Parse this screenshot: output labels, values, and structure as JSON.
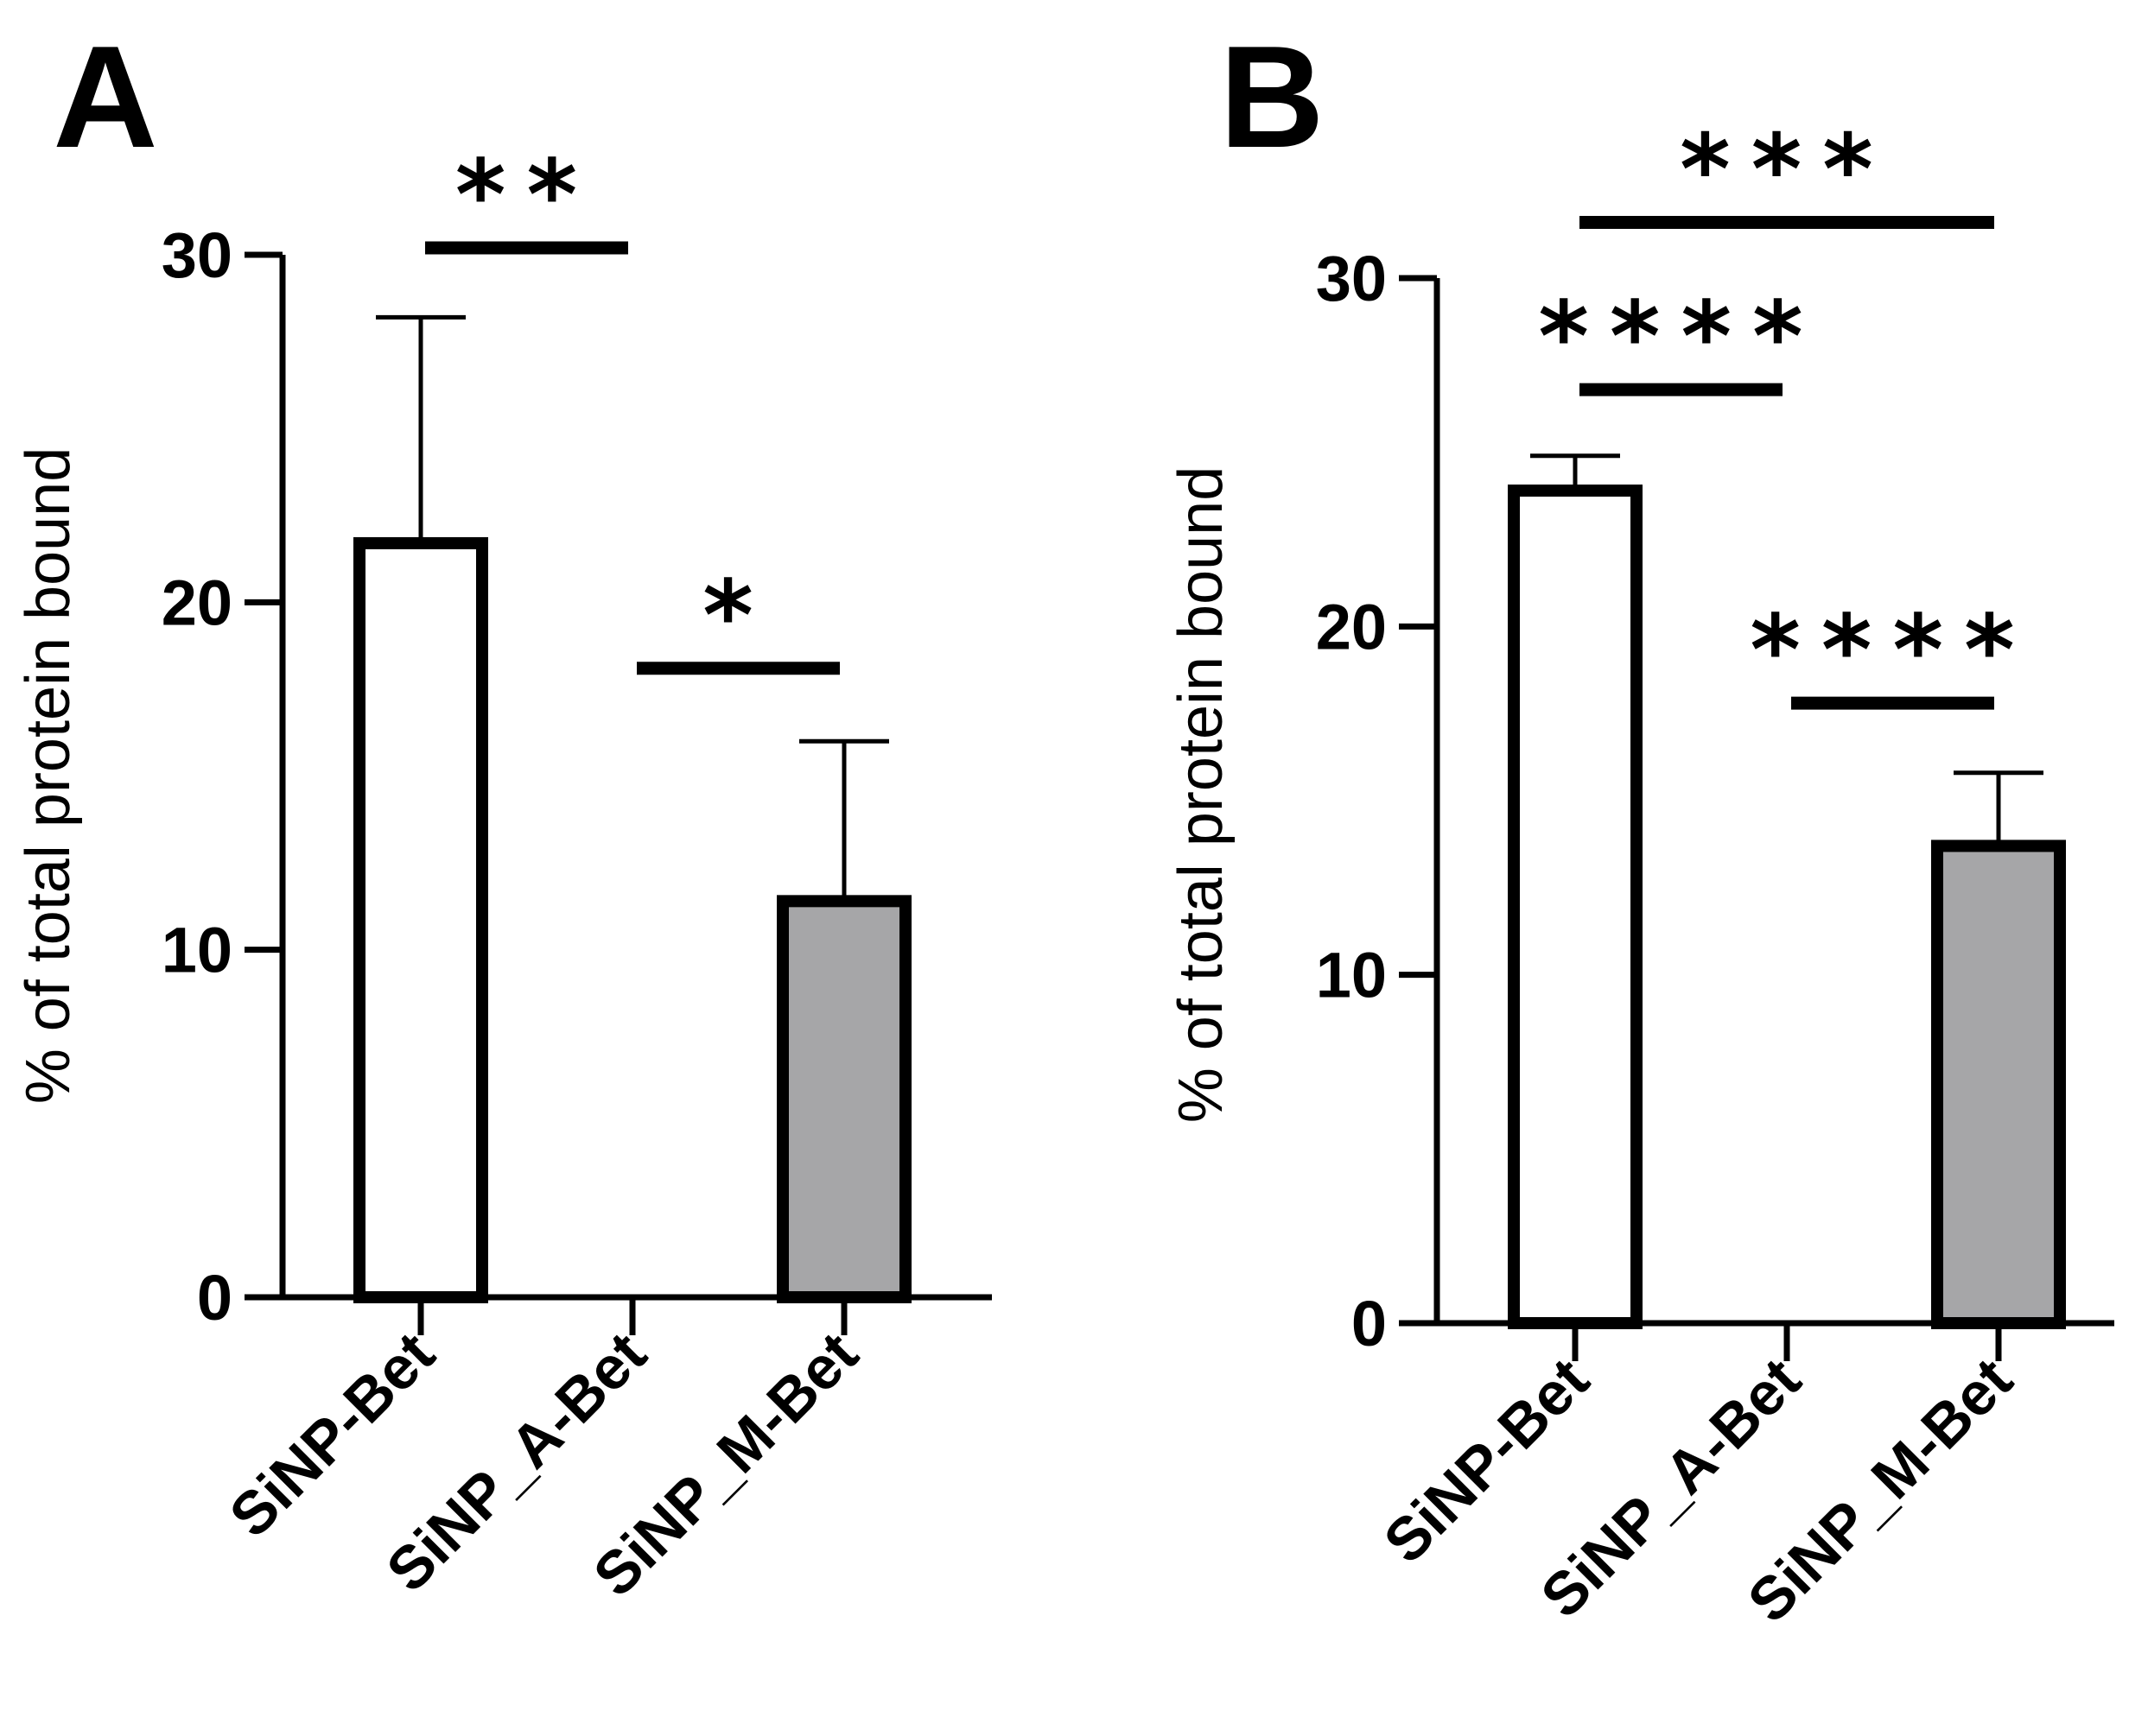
{
  "chart_data": [
    {
      "type": "bar",
      "panel_label": "A",
      "categories": [
        "SiNP-Bet",
        "SiNP_A-Bet",
        "SiNP_M-Bet"
      ],
      "values": [
        21.7,
        0,
        11.4
      ],
      "errors": [
        6.5,
        0,
        4.6
      ],
      "bar_colors": [
        "#ffffff",
        "#ffffff",
        "#a6a6a8"
      ],
      "ylabel": "% of total protein bound",
      "ylim": [
        0,
        30
      ],
      "yticks": [
        0,
        10,
        20,
        30
      ],
      "grid": false,
      "significance": [
        {
          "from": 0,
          "to": 1,
          "level": 30.2,
          "label": "**"
        },
        {
          "from": 1,
          "to": 2,
          "level": 18.1,
          "label": "*"
        }
      ]
    },
    {
      "type": "bar",
      "panel_label": "B",
      "categories": [
        "SiNP-Bet",
        "SiNP_A-Bet",
        "SiNP_M-Bet"
      ],
      "values": [
        23.9,
        0,
        13.7
      ],
      "errors": [
        1.0,
        0,
        2.1
      ],
      "bar_colors": [
        "#ffffff",
        "#ffffff",
        "#a6a6a8"
      ],
      "ylabel": "% of total protein bound",
      "ylim": [
        0,
        30
      ],
      "yticks": [
        0,
        10,
        20,
        30
      ],
      "grid": false,
      "significance": [
        {
          "from": 0,
          "to": 2,
          "level": 31.6,
          "label": "***"
        },
        {
          "from": 0,
          "to": 1,
          "level": 26.8,
          "label": "****"
        },
        {
          "from": 1,
          "to": 2,
          "level": 17.8,
          "label": "****"
        }
      ]
    }
  ]
}
